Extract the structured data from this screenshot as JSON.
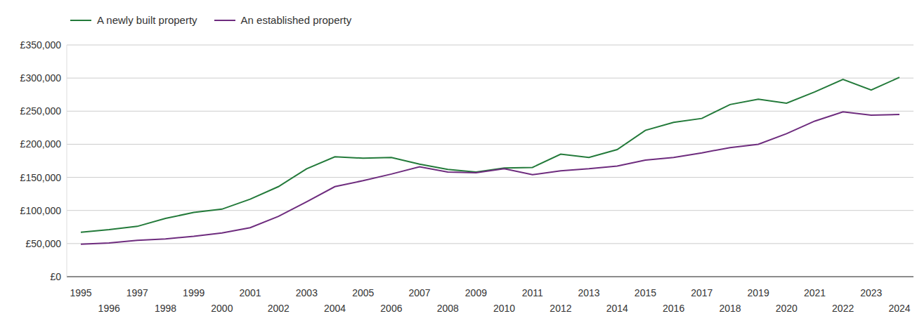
{
  "chart_data": {
    "type": "line",
    "categories": [
      "1995",
      "1996",
      "1997",
      "1998",
      "1999",
      "2000",
      "2001",
      "2002",
      "2003",
      "2004",
      "2005",
      "2006",
      "2007",
      "2008",
      "2009",
      "2010",
      "2011",
      "2012",
      "2013",
      "2014",
      "2015",
      "2016",
      "2017",
      "2018",
      "2019",
      "2020",
      "2021",
      "2022",
      "2023",
      "2024"
    ],
    "series": [
      {
        "name": "A newly built property",
        "color": "#237a3a",
        "values": [
          67000,
          71000,
          76000,
          88000,
          97000,
          102000,
          117000,
          136000,
          163000,
          181000,
          179000,
          180000,
          170000,
          162000,
          158000,
          164000,
          165000,
          185000,
          180000,
          192000,
          221000,
          233000,
          239000,
          260000,
          268000,
          262000,
          279000,
          298000,
          282000,
          301000
        ]
      },
      {
        "name": "An established property",
        "color": "#6e2c7e",
        "values": [
          49000,
          51000,
          55000,
          57000,
          61000,
          66000,
          74000,
          91000,
          113000,
          136000,
          145000,
          155000,
          166000,
          158000,
          157000,
          163000,
          154000,
          160000,
          163000,
          167000,
          176000,
          180000,
          187000,
          195000,
          200000,
          216000,
          235000,
          249000,
          244000,
          245000
        ]
      }
    ],
    "ylim": [
      0,
      350000
    ],
    "yticks": [
      {
        "value": 0,
        "label": "£0"
      },
      {
        "value": 50000,
        "label": "£50,000"
      },
      {
        "value": 100000,
        "label": "£100,000"
      },
      {
        "value": 150000,
        "label": "£150,000"
      },
      {
        "value": 200000,
        "label": "£200,000"
      },
      {
        "value": 250000,
        "label": "£250,000"
      },
      {
        "value": 300000,
        "label": "£300,000"
      },
      {
        "value": 350000,
        "label": "£350,000"
      }
    ],
    "grid": true,
    "legend": "top-left"
  }
}
